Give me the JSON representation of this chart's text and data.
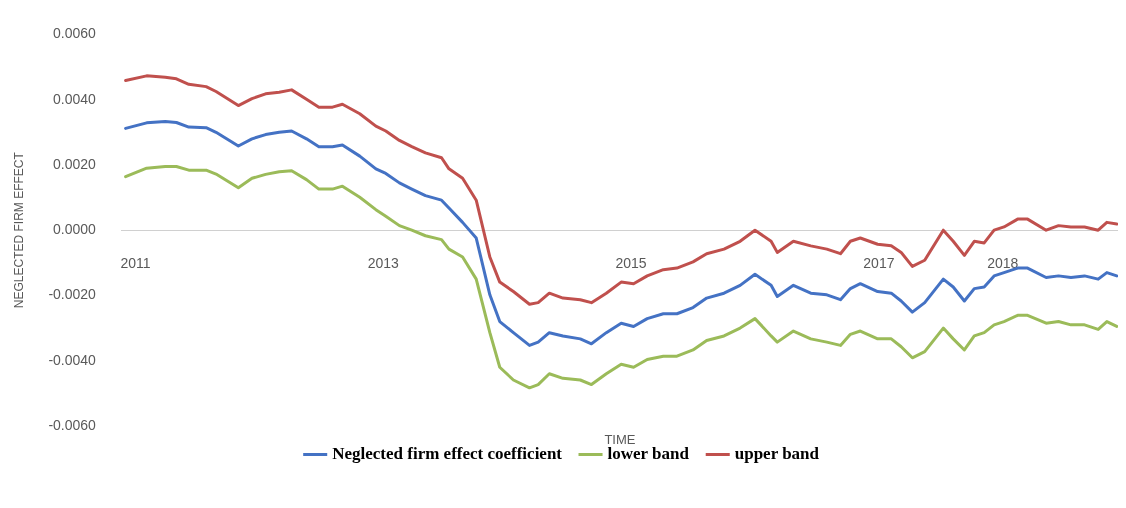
{
  "chart_data": {
    "type": "line",
    "xlabel": "TIME",
    "ylabel": "NEGLECTED FIRM EFFECT",
    "x": [
      2010.92,
      2011.09,
      2011.24,
      2011.33,
      2011.43,
      2011.57,
      2011.65,
      2011.83,
      2011.94,
      2012.05,
      2012.16,
      2012.26,
      2012.38,
      2012.48,
      2012.59,
      2012.67,
      2012.81,
      2012.94,
      2013.02,
      2013.13,
      2013.23,
      2013.34,
      2013.47,
      2013.53,
      2013.64,
      2013.75,
      2013.86,
      2013.94,
      2014.05,
      2014.18,
      2014.25,
      2014.34,
      2014.45,
      2014.59,
      2014.68,
      2014.8,
      2014.92,
      2015.02,
      2015.13,
      2015.26,
      2015.37,
      2015.5,
      2015.61,
      2015.75,
      2015.88,
      2016.0,
      2016.13,
      2016.18,
      2016.31,
      2016.45,
      2016.58,
      2016.69,
      2016.77,
      2016.85,
      2016.99,
      2017.1,
      2017.18,
      2017.27,
      2017.37,
      2017.52,
      2017.6,
      2017.69,
      2017.77,
      2017.85,
      2017.93,
      2018.01,
      2018.12,
      2018.2,
      2018.35,
      2018.45,
      2018.55,
      2018.66,
      2018.77,
      2018.84,
      2018.92
    ],
    "series": [
      {
        "name": "Neglected firm effect coefficient",
        "color": "#4472c4",
        "values": [
          0.00312,
          0.00329,
          0.00333,
          0.0033,
          0.00316,
          0.00314,
          0.003,
          0.00258,
          0.0028,
          0.00293,
          0.003,
          0.00304,
          0.0028,
          0.00256,
          0.00256,
          0.00261,
          0.00227,
          0.00188,
          0.00174,
          0.00145,
          0.00126,
          0.00106,
          0.00092,
          0.00068,
          0.00024,
          -0.00024,
          -0.00198,
          -0.0028,
          -0.00314,
          -0.00353,
          -0.00343,
          -0.00314,
          -0.00324,
          -0.00333,
          -0.00348,
          -0.00314,
          -0.00285,
          -0.00295,
          -0.00271,
          -0.00256,
          -0.00256,
          -0.00237,
          -0.00208,
          -0.00193,
          -0.00169,
          -0.00135,
          -0.00169,
          -0.00203,
          -0.00169,
          -0.00193,
          -0.00198,
          -0.00213,
          -0.00179,
          -0.00164,
          -0.00188,
          -0.00193,
          -0.00217,
          -0.00251,
          -0.00222,
          -0.0015,
          -0.00174,
          -0.00217,
          -0.00179,
          -0.00174,
          -0.0014,
          -0.0013,
          -0.00116,
          -0.00116,
          -0.00145,
          -0.0014,
          -0.00145,
          -0.0014,
          -0.0015,
          -0.0013,
          -0.0014
        ]
      },
      {
        "name": "lower band",
        "color": "#9bbb59",
        "values": [
          0.00164,
          0.0019,
          0.00195,
          0.00195,
          0.00184,
          0.00184,
          0.00172,
          0.0013,
          0.00159,
          0.00171,
          0.00179,
          0.00182,
          0.00155,
          0.00126,
          0.00126,
          0.00135,
          0.00101,
          0.00063,
          0.00043,
          0.00014,
          0.0,
          -0.00017,
          -0.00029,
          -0.00058,
          -0.00082,
          -0.0015,
          -0.00314,
          -0.0042,
          -0.00459,
          -0.00483,
          -0.00473,
          -0.0044,
          -0.00454,
          -0.00459,
          -0.00473,
          -0.0044,
          -0.00411,
          -0.0042,
          -0.00396,
          -0.00386,
          -0.00386,
          -0.00367,
          -0.00338,
          -0.00324,
          -0.003,
          -0.00271,
          -0.00324,
          -0.00343,
          -0.00309,
          -0.00333,
          -0.00343,
          -0.00353,
          -0.00319,
          -0.00309,
          -0.00333,
          -0.00333,
          -0.00357,
          -0.00391,
          -0.00372,
          -0.003,
          -0.00333,
          -0.00367,
          -0.00324,
          -0.00314,
          -0.0029,
          -0.0028,
          -0.00261,
          -0.00261,
          -0.00285,
          -0.0028,
          -0.0029,
          -0.0029,
          -0.00304,
          -0.0028,
          -0.00295
        ]
      },
      {
        "name": "upper band",
        "color": "#c0504d",
        "values": [
          0.00459,
          0.00473,
          0.00469,
          0.00464,
          0.00447,
          0.0044,
          0.00425,
          0.00382,
          0.00403,
          0.00418,
          0.00423,
          0.0043,
          0.00401,
          0.00377,
          0.00377,
          0.00386,
          0.00357,
          0.00319,
          0.00304,
          0.00275,
          0.00256,
          0.00237,
          0.00222,
          0.00188,
          0.00159,
          0.00092,
          -0.00082,
          -0.00159,
          -0.00188,
          -0.00227,
          -0.00222,
          -0.00193,
          -0.00208,
          -0.00213,
          -0.00222,
          -0.00193,
          -0.00159,
          -0.00164,
          -0.0014,
          -0.00121,
          -0.00116,
          -0.00097,
          -0.00072,
          -0.00058,
          -0.00034,
          0.0,
          -0.00034,
          -0.00068,
          -0.00034,
          -0.00048,
          -0.00058,
          -0.00072,
          -0.00034,
          -0.00024,
          -0.00043,
          -0.00048,
          -0.00068,
          -0.00111,
          -0.00092,
          0.0,
          -0.00034,
          -0.00077,
          -0.00034,
          -0.00039,
          0.0,
          0.0001,
          0.00034,
          0.00034,
          0.0,
          0.00014,
          0.0001,
          0.0001,
          0.0,
          0.00024,
          0.00019
        ]
      }
    ],
    "xlim": [
      2010.89,
      2018.93
    ],
    "xticks": [
      2011,
      2013,
      2015,
      2017,
      2018
    ],
    "ylim": [
      -0.006,
      0.006
    ],
    "yticks": [
      {
        "value": -0.006,
        "label": "-0.0060"
      },
      {
        "value": -0.004,
        "label": "-0.0040"
      },
      {
        "value": -0.002,
        "label": "-0.0020"
      },
      {
        "value": 0,
        "label": "0.0000"
      },
      {
        "value": 0.002,
        "label": "0.0020"
      },
      {
        "value": 0.004,
        "label": "0.0040"
      },
      {
        "value": 0.006,
        "label": "0.0060"
      }
    ],
    "grid": false,
    "legend": "bottom",
    "marker": "none",
    "line_style": "solid"
  }
}
